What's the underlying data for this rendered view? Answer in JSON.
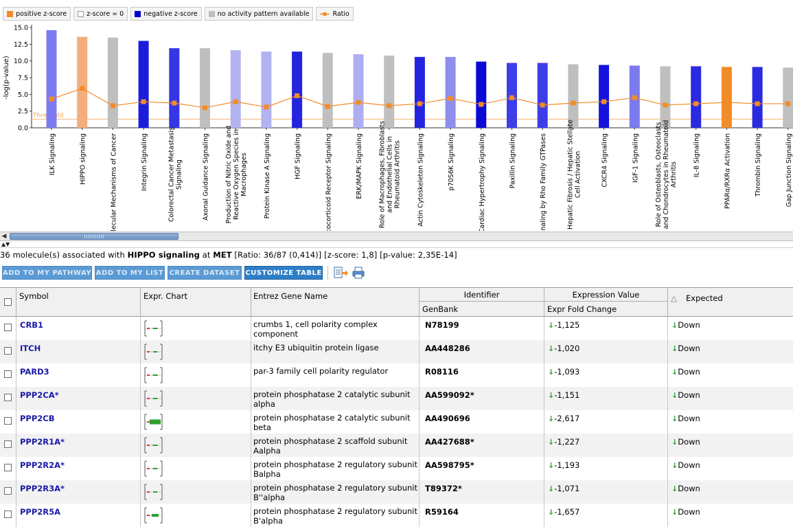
{
  "legend": [
    {
      "label": "positive z-score",
      "color": "#f28c28",
      "kind": "swatch"
    },
    {
      "label": "z-score = 0",
      "color": "#ffffff",
      "kind": "swatch"
    },
    {
      "label": "negative z-score",
      "color": "#0000cc",
      "kind": "swatch"
    },
    {
      "label": "no activity pattern available",
      "color": "#bfbfbf",
      "kind": "swatch"
    },
    {
      "label": "Ratio",
      "color": "#f28c28",
      "kind": "line"
    }
  ],
  "chart_data": {
    "type": "bar",
    "ylabel": "-log(p-value)",
    "ylim": [
      0,
      15
    ],
    "yticks": [
      "0.0",
      "2.5",
      "5.0",
      "7.5",
      "10.0",
      "12.5",
      "15.0"
    ],
    "threshold_label": "Threshold",
    "threshold_value": 1.3,
    "categories": [
      "ILK Signaling",
      "HIPPO signaling",
      "Molecular Mechanisms of Cancer",
      "Integrin Signaling",
      "Colorectal Cancer Metastasis Signaling",
      "Axonal Guidance Signaling",
      "Production of Nitric Oxide and Reactive Oxygen Species in Macrophages",
      "Protein Kinase A Signaling",
      "HGF Signaling",
      "Glucocorticoid Receptor Signaling",
      "ERK/MAPK Signaling",
      "Role of Macrophages, Fibroblasts and Endothelial Cells in Rheumatoid Arthritis",
      "Actin Cytoskeleton Signaling",
      "p70S6K Signaling",
      "Cardiac Hypertrophy Signaling",
      "Paxillin Signaling",
      "Signaling by Rho Family GTPases",
      "Hepatic Fibrosis / Hepatic Stellate Cell Activation",
      "CXCR4 Signaling",
      "IGF-1 Signaling",
      "Role of Osteoblasts, Osteoclasts and Chondrocytes in Rheumatoid Arthritis",
      "IL-8 Signaling",
      "PPARα/RXRα Activation",
      "Thrombin Signaling",
      "Gap Junction Signaling"
    ],
    "axis_labels": [
      [
        "ILK Signaling"
      ],
      [
        "HIPPO signaling"
      ],
      [
        "Molecular Mechanisms of Cancer"
      ],
      [
        "Integrin Signaling"
      ],
      [
        "Colorectal Cancer Metastasis",
        "Signaling"
      ],
      [
        "Axonal Guidance Signaling"
      ],
      [
        "Production of Nitric Oxide and",
        "Reactive Oxygen Species in",
        "Macrophages"
      ],
      [
        "Protein Kinase A Signaling"
      ],
      [
        "HGF Signaling"
      ],
      [
        "Glucocorticoid Receptor Signaling"
      ],
      [
        "ERK/MAPK Signaling"
      ],
      [
        "Role of Macrophages, Fibroblasts",
        "and Endothelial Cells in",
        "Rheumatoid Arthritis"
      ],
      [
        "Actin Cytoskeleton Signaling"
      ],
      [
        "p70S6K Signaling"
      ],
      [
        "Cardiac Hypertrophy Signaling"
      ],
      [
        "Paxillin Signaling"
      ],
      [
        "Signaling by Rho Family GTPases"
      ],
      [
        "Hepatic Fibrosis / Hepatic Stellate",
        "Cell Activation"
      ],
      [
        "CXCR4 Signaling"
      ],
      [
        "IGF-1 Signaling"
      ],
      [
        "Role of Osteoblasts, Osteoclasts",
        "and Chondrocytes in Rheumatoid",
        "Arthritis"
      ],
      [
        "IL-8 Signaling"
      ],
      [
        "PPARα/RXRα Activation"
      ],
      [
        "Thrombin Signaling"
      ],
      [
        "Gap Junction Signaling"
      ]
    ],
    "values": [
      14.6,
      13.6,
      13.5,
      13.0,
      11.9,
      11.9,
      11.6,
      11.4,
      11.4,
      11.2,
      11.0,
      10.8,
      10.6,
      10.6,
      9.9,
      9.7,
      9.7,
      9.5,
      9.4,
      9.3,
      9.2,
      9.2,
      9.1,
      9.1,
      9.0
    ],
    "colors": [
      "#7b7bef",
      "#f5ad7c",
      "#bfbfbf",
      "#1c1cdc",
      "#3636e6",
      "#bfbfbf",
      "#b3b3f2",
      "#b3b3f2",
      "#2424e0",
      "#bfbfbf",
      "#aeaef2",
      "#bfbfbf",
      "#2424e0",
      "#8e8eee",
      "#0a0ad6",
      "#3e3ee8",
      "#3e3ee8",
      "#bfbfbf",
      "#1414dc",
      "#7b7bef",
      "#bfbfbf",
      "#2a2ae2",
      "#f28c28",
      "#2a2ae2",
      "#bfbfbf"
    ],
    "ratio_line": [
      4.3,
      5.9,
      3.3,
      3.9,
      3.7,
      3.0,
      3.9,
      3.1,
      4.8,
      3.2,
      3.8,
      3.3,
      3.6,
      4.4,
      3.5,
      4.5,
      3.4,
      3.7,
      3.9,
      4.5,
      3.4,
      3.6,
      3.8,
      3.6,
      3.6
    ]
  },
  "scroll": {
    "left_arrow": "◀"
  },
  "splitter": {
    "glyph": "▲▼"
  },
  "info": {
    "prefix": "36 molecule(s) associated with ",
    "pathway": "HIPPO signaling",
    "mid": " at ",
    "dataset": "MET",
    "stats": " [Ratio: 36/87 (0,414)] [z-score: 1,8] [p-value: 2,35E-14]"
  },
  "toolbar": {
    "add_pathway": "ADD TO MY PATHWAY",
    "add_list": "ADD TO MY LIST",
    "create_dataset": "CREATE DATASET",
    "customize": "CUSTOMIZE TABLE"
  },
  "table": {
    "headers": {
      "symbol": "Symbol",
      "expr_chart": "Expr. Chart",
      "entrez": "Entrez Gene Name",
      "identifier": "Identifier",
      "genbank": "GenBank",
      "expression_value": "Expression Value",
      "fold_change": "Expr Fold Change",
      "sort_glyph": "△",
      "expected": "Expected"
    },
    "rows": [
      {
        "symbol": "CRB1",
        "name": "crumbs 1, cell polarity complex component",
        "genbank": "N78199",
        "fc": "-1,125",
        "expected": "Down",
        "fc_value": -1.125
      },
      {
        "symbol": "ITCH",
        "name": "itchy E3 ubiquitin protein ligase",
        "genbank": "AA448286",
        "fc": "-1,020",
        "expected": "Down",
        "fc_value": -1.02
      },
      {
        "symbol": "PARD3",
        "name": "par-3 family cell polarity regulator",
        "genbank": "R08116",
        "fc": "-1,093",
        "expected": "Down",
        "fc_value": -1.093
      },
      {
        "symbol": "PPP2CA*",
        "name": "protein phosphatase 2 catalytic subunit alpha",
        "genbank": "AA599092*",
        "fc": "-1,151",
        "expected": "Down",
        "fc_value": -1.151
      },
      {
        "symbol": "PPP2CB",
        "name": "protein phosphatase 2 catalytic subunit beta",
        "genbank": "AA490696",
        "fc": "-2,617",
        "expected": "Down",
        "fc_value": -2.617
      },
      {
        "symbol": "PPP2R1A*",
        "name": "protein phosphatase 2 scaffold subunit Aalpha",
        "genbank": "AA427688*",
        "fc": "-1,227",
        "expected": "Down",
        "fc_value": -1.227
      },
      {
        "symbol": "PPP2R2A*",
        "name": "protein phosphatase 2 regulatory subunit Balpha",
        "genbank": "AA598795*",
        "fc": "-1,193",
        "expected": "Down",
        "fc_value": -1.193
      },
      {
        "symbol": "PPP2R3A*",
        "name": "protein phosphatase 2 regulatory subunit B''alpha",
        "genbank": "T89372*",
        "fc": "-1,071",
        "expected": "Down",
        "fc_value": -1.071
      },
      {
        "symbol": "PPP2R5A",
        "name": "protein phosphatase 2 regulatory subunit B'alpha",
        "genbank": "R59164",
        "fc": "-1,657",
        "expected": "Down",
        "fc_value": -1.657
      }
    ]
  }
}
